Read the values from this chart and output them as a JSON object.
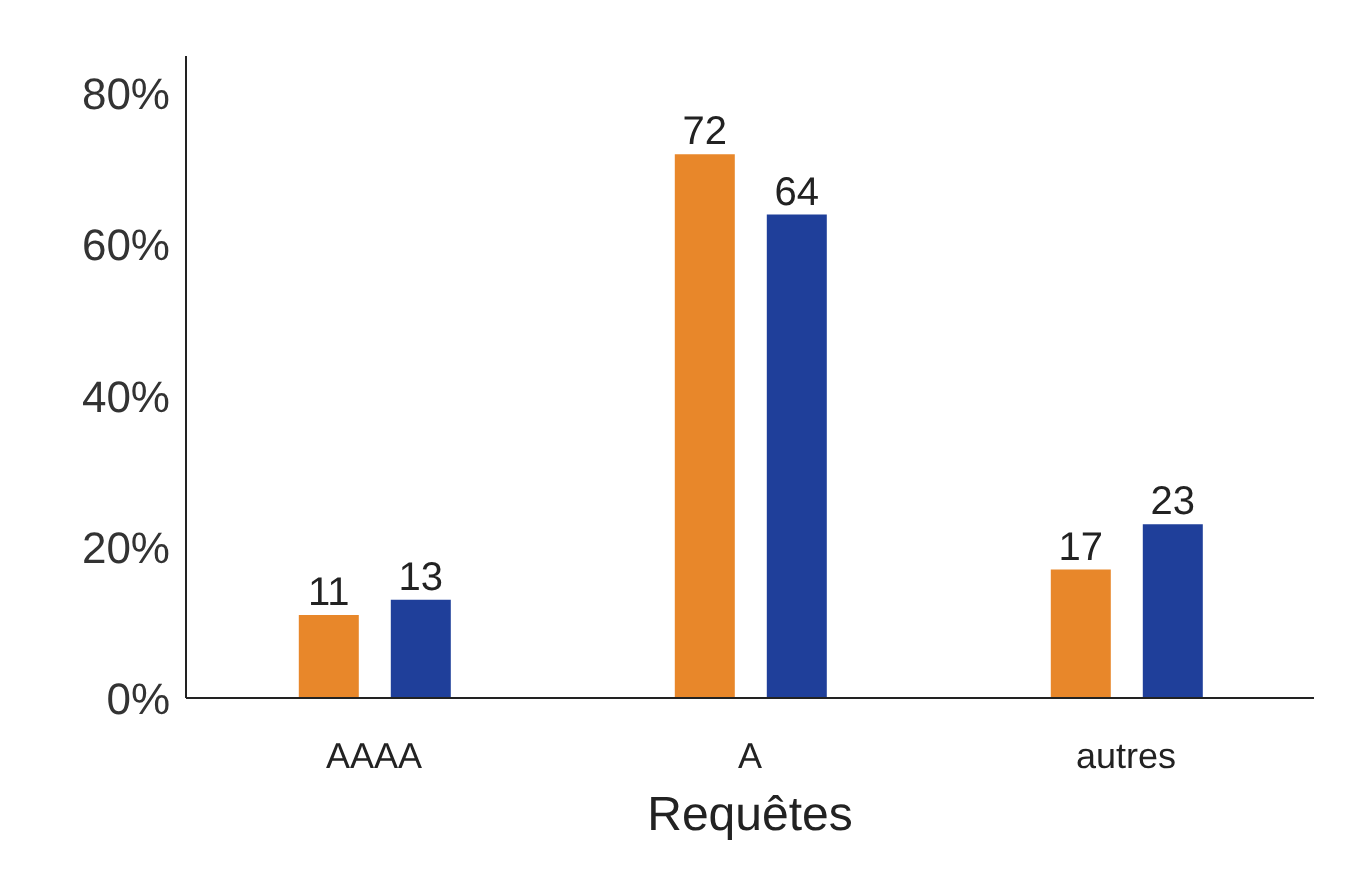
{
  "chart_data": {
    "type": "bar",
    "xlabel": "Requêtes",
    "categories": [
      "AAAA",
      "A",
      "autres"
    ],
    "series": [
      {
        "color": "#e8872a",
        "values": [
          11,
          72,
          17
        ]
      },
      {
        "color": "#1f3f9a",
        "values": [
          13,
          64,
          23
        ]
      }
    ],
    "ylim": [
      0,
      85
    ],
    "yticks": [
      {
        "value": 0,
        "label": "0%"
      },
      {
        "value": 20,
        "label": "20%"
      },
      {
        "value": 40,
        "label": "40%"
      },
      {
        "value": 60,
        "label": "60%"
      },
      {
        "value": 80,
        "label": "80%"
      }
    ],
    "data_labels": true,
    "grid": false,
    "legend": false
  }
}
